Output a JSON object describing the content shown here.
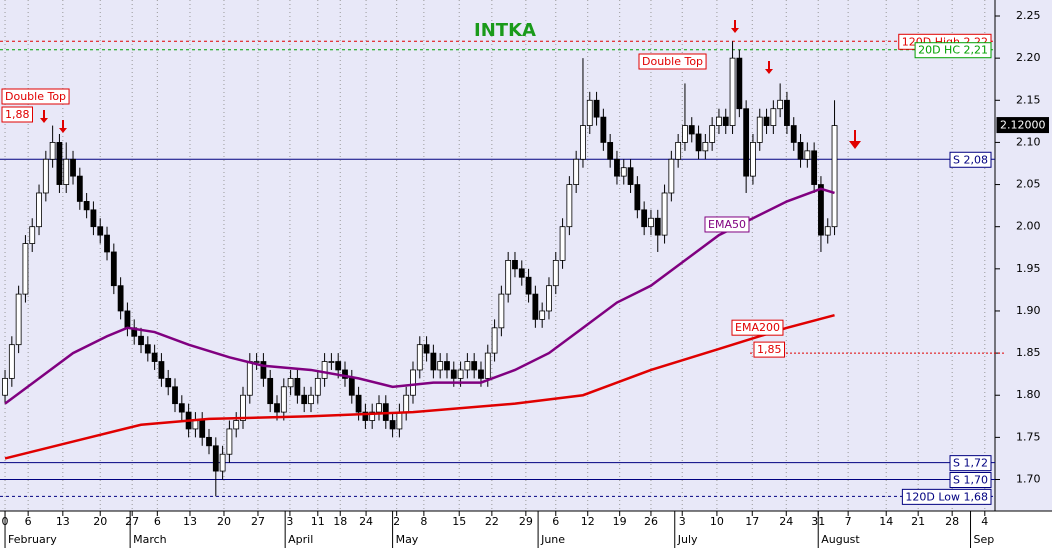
{
  "chart_data": {
    "type": "candlestick",
    "title": "INTKA",
    "open": [
      1.8,
      1.82,
      1.86,
      1.92,
      1.98,
      2.0,
      2.04,
      2.08,
      2.1,
      2.05,
      2.08,
      2.06,
      2.03,
      2.02,
      2.0,
      1.99,
      1.97,
      1.93,
      1.9,
      1.88,
      1.87,
      1.86,
      1.85,
      1.84,
      1.82,
      1.81,
      1.79,
      1.78,
      1.76,
      1.77,
      1.75,
      1.74,
      1.71,
      1.73,
      1.76,
      1.77,
      1.8,
      1.84,
      1.84,
      1.82,
      1.79,
      1.78,
      1.81,
      1.82,
      1.8,
      1.79,
      1.8,
      1.82,
      1.84,
      1.84,
      1.83,
      1.82,
      1.8,
      1.78,
      1.77,
      1.78,
      1.79,
      1.77,
      1.76,
      1.78,
      1.8,
      1.83,
      1.86,
      1.85,
      1.83,
      1.84,
      1.83,
      1.82,
      1.83,
      1.84,
      1.83,
      1.82,
      1.85,
      1.88,
      1.92,
      1.96,
      1.95,
      1.94,
      1.92,
      1.89,
      1.9,
      1.93,
      1.96,
      2.0,
      2.05,
      2.08,
      2.12,
      2.15,
      2.13,
      2.1,
      2.08,
      2.06,
      2.07,
      2.05,
      2.02,
      2.0,
      2.01,
      1.99,
      2.04,
      2.08,
      2.1,
      2.12,
      2.11,
      2.09,
      2.1,
      2.12,
      2.13,
      2.12,
      2.2,
      2.14,
      2.06,
      2.1,
      2.13,
      2.12,
      2.14,
      2.15,
      2.12,
      2.1,
      2.08,
      2.09,
      2.05,
      1.99,
      2.0
    ],
    "high": [
      1.83,
      1.87,
      1.93,
      1.99,
      2.01,
      2.05,
      2.09,
      2.12,
      2.11,
      2.1,
      2.09,
      2.07,
      2.04,
      2.03,
      2.01,
      2.0,
      1.98,
      1.94,
      1.91,
      1.89,
      1.88,
      1.87,
      1.86,
      1.85,
      1.83,
      1.82,
      1.8,
      1.79,
      1.78,
      1.78,
      1.76,
      1.75,
      1.74,
      1.77,
      1.78,
      1.81,
      1.85,
      1.85,
      1.85,
      1.83,
      1.8,
      1.82,
      1.83,
      1.83,
      1.81,
      1.81,
      1.83,
      1.85,
      1.85,
      1.85,
      1.84,
      1.83,
      1.81,
      1.79,
      1.79,
      1.8,
      1.8,
      1.78,
      1.79,
      1.81,
      1.84,
      1.87,
      1.87,
      1.86,
      1.85,
      1.85,
      1.84,
      1.84,
      1.85,
      1.85,
      1.84,
      1.86,
      1.89,
      1.93,
      1.97,
      1.97,
      1.96,
      1.95,
      1.93,
      1.91,
      1.94,
      1.97,
      2.01,
      2.06,
      2.09,
      2.2,
      2.16,
      2.16,
      2.14,
      2.11,
      2.09,
      2.08,
      2.08,
      2.06,
      2.03,
      2.02,
      2.02,
      2.05,
      2.09,
      2.11,
      2.17,
      2.13,
      2.12,
      2.11,
      2.13,
      2.14,
      2.14,
      2.22,
      2.21,
      2.15,
      2.11,
      2.14,
      2.14,
      2.15,
      2.17,
      2.16,
      2.13,
      2.11,
      2.1,
      2.1,
      2.06,
      2.01,
      2.15
    ],
    "low": [
      1.79,
      1.81,
      1.85,
      1.91,
      1.97,
      1.99,
      2.03,
      2.07,
      2.04,
      2.04,
      2.05,
      2.02,
      2.01,
      1.99,
      1.98,
      1.96,
      1.92,
      1.89,
      1.87,
      1.86,
      1.85,
      1.84,
      1.83,
      1.81,
      1.8,
      1.78,
      1.77,
      1.75,
      1.75,
      1.74,
      1.73,
      1.68,
      1.7,
      1.72,
      1.75,
      1.76,
      1.79,
      1.83,
      1.81,
      1.78,
      1.77,
      1.77,
      1.8,
      1.79,
      1.78,
      1.78,
      1.79,
      1.81,
      1.83,
      1.82,
      1.81,
      1.79,
      1.77,
      1.76,
      1.76,
      1.77,
      1.76,
      1.75,
      1.75,
      1.77,
      1.79,
      1.82,
      1.84,
      1.82,
      1.82,
      1.82,
      1.81,
      1.81,
      1.82,
      1.82,
      1.81,
      1.81,
      1.84,
      1.87,
      1.91,
      1.94,
      1.93,
      1.91,
      1.88,
      1.88,
      1.89,
      1.92,
      1.95,
      1.99,
      2.04,
      2.07,
      2.11,
      2.12,
      2.09,
      2.07,
      2.05,
      2.05,
      2.04,
      2.01,
      1.99,
      1.99,
      1.97,
      1.98,
      2.03,
      2.07,
      2.09,
      2.1,
      2.08,
      2.08,
      2.09,
      2.11,
      2.11,
      2.11,
      2.13,
      2.04,
      2.05,
      2.09,
      2.11,
      2.11,
      2.13,
      2.11,
      2.09,
      2.07,
      2.07,
      2.04,
      1.97,
      1.98,
      1.99
    ],
    "close": [
      1.82,
      1.86,
      1.92,
      1.98,
      2.0,
      2.04,
      2.08,
      2.1,
      2.05,
      2.08,
      2.06,
      2.03,
      2.02,
      2.0,
      1.99,
      1.97,
      1.93,
      1.9,
      1.88,
      1.87,
      1.86,
      1.85,
      1.84,
      1.82,
      1.81,
      1.79,
      1.78,
      1.76,
      1.77,
      1.75,
      1.74,
      1.71,
      1.73,
      1.76,
      1.77,
      1.8,
      1.84,
      1.84,
      1.82,
      1.79,
      1.78,
      1.81,
      1.82,
      1.8,
      1.79,
      1.8,
      1.82,
      1.84,
      1.84,
      1.83,
      1.82,
      1.8,
      1.78,
      1.77,
      1.78,
      1.79,
      1.77,
      1.76,
      1.78,
      1.8,
      1.83,
      1.86,
      1.85,
      1.83,
      1.84,
      1.83,
      1.82,
      1.83,
      1.84,
      1.83,
      1.82,
      1.85,
      1.88,
      1.92,
      1.96,
      1.95,
      1.94,
      1.92,
      1.89,
      1.9,
      1.93,
      1.96,
      2.0,
      2.05,
      2.08,
      2.12,
      2.15,
      2.13,
      2.1,
      2.08,
      2.06,
      2.07,
      2.05,
      2.02,
      2.0,
      2.01,
      1.99,
      2.04,
      2.08,
      2.1,
      2.12,
      2.11,
      2.09,
      2.1,
      2.12,
      2.13,
      2.12,
      2.2,
      2.14,
      2.06,
      2.1,
      2.13,
      2.12,
      2.14,
      2.15,
      2.12,
      2.1,
      2.08,
      2.09,
      2.05,
      1.99,
      2.0,
      2.12
    ],
    "overlays": [
      {
        "name": "EMA50",
        "color": "#800080",
        "x": [
          0,
          5,
          10,
          15,
          18,
          22,
          27,
          33,
          38,
          45,
          52,
          57,
          63,
          70,
          75,
          80,
          85,
          90,
          95,
          100,
          105,
          110,
          115,
          120,
          122
        ],
        "values": [
          1.79,
          1.82,
          1.85,
          1.87,
          1.88,
          1.875,
          1.86,
          1.845,
          1.835,
          1.83,
          1.82,
          1.81,
          1.815,
          1.815,
          1.83,
          1.85,
          1.88,
          1.91,
          1.93,
          1.96,
          1.99,
          2.01,
          2.03,
          2.045,
          2.04
        ]
      },
      {
        "name": "EMA200",
        "color": "#e00000",
        "x": [
          0,
          10,
          20,
          30,
          45,
          60,
          75,
          85,
          95,
          105,
          115,
          122
        ],
        "values": [
          1.725,
          1.745,
          1.765,
          1.772,
          1.775,
          1.78,
          1.79,
          1.8,
          1.83,
          1.855,
          1.88,
          1.895
        ]
      }
    ],
    "levels": [
      {
        "label": "120D High 2,22",
        "value": 2.22,
        "color": "#e00000",
        "style": "dashed"
      },
      {
        "label": "20D HC 2,21",
        "value": 2.21,
        "color": "#00a000",
        "style": "dashed"
      },
      {
        "label": "S 2,08",
        "value": 2.08,
        "color": "#000080",
        "style": "solid"
      },
      {
        "label": "S 1,72",
        "value": 1.72,
        "color": "#000080",
        "style": "solid"
      },
      {
        "label": "S 1,70",
        "value": 1.7,
        "color": "#000080",
        "style": "solid"
      },
      {
        "label": "120D Low 1,68",
        "value": 1.68,
        "color": "#000080",
        "style": "dashed"
      }
    ],
    "price_labels": [
      {
        "label": "1,88",
        "value": 1.88
      },
      {
        "label": "1,85",
        "value": 1.85
      }
    ],
    "last_price": {
      "label": "2.12000",
      "value": 2.12
    },
    "annotations": [
      "Double Top",
      "Double Top"
    ],
    "ylim": [
      1.665,
      2.269
    ],
    "yticks": [
      {
        "value": 1.7,
        "label": "1.70"
      },
      1.75,
      {
        "value": 1.8,
        "label": "1.80"
      },
      1.85,
      {
        "value": 1.9,
        "label": "1.90"
      },
      1.95,
      {
        "value": 2.0,
        "label": "2.00"
      },
      2.05,
      {
        "value": 2.1,
        "label": "2.10"
      },
      2.15,
      {
        "value": 2.2,
        "label": "2.20"
      },
      2.25
    ],
    "xlim": [
      -0.74,
      145.6
    ],
    "xticks": [
      {
        "value": 0,
        "label": "0"
      },
      {
        "value": 3.4,
        "label": "6"
      },
      {
        "value": 8.5,
        "label": "13"
      },
      {
        "value": 14,
        "label": "20"
      },
      {
        "value": 18.7,
        "label": "27"
      },
      {
        "value": 22.4,
        "label": "6"
      },
      {
        "value": 27.2,
        "label": "13"
      },
      {
        "value": 32.2,
        "label": "20"
      },
      {
        "value": 37.2,
        "label": "27"
      },
      {
        "value": 41.9,
        "label": "3"
      },
      {
        "value": 46,
        "label": "11"
      },
      {
        "value": 49.3,
        "label": "18"
      },
      {
        "value": 53.1,
        "label": "24"
      },
      {
        "value": 57.6,
        "label": "2"
      },
      {
        "value": 61.6,
        "label": "8"
      },
      {
        "value": 66.8,
        "label": "15"
      },
      {
        "value": 71.6,
        "label": "22"
      },
      {
        "value": 76.6,
        "label": "29"
      },
      {
        "value": 81,
        "label": "6"
      },
      {
        "value": 85.7,
        "label": "12"
      },
      {
        "value": 90.4,
        "label": "19"
      },
      {
        "value": 95,
        "label": "26"
      },
      {
        "value": 99.6,
        "label": "3"
      },
      {
        "value": 104.7,
        "label": "10"
      },
      {
        "value": 109.9,
        "label": "17"
      },
      {
        "value": 114.9,
        "label": "24"
      },
      {
        "value": 119.6,
        "label": "31"
      },
      {
        "value": 124,
        "label": "7"
      },
      {
        "value": 129.6,
        "label": "14"
      },
      {
        "value": 134.3,
        "label": "21"
      },
      {
        "value": 139.3,
        "label": "28"
      },
      {
        "value": 144.1,
        "label": "4"
      }
    ],
    "months": [
      {
        "value": 0,
        "label": "February"
      },
      {
        "value": 18.4,
        "label": "March"
      },
      {
        "value": 41.2,
        "label": "April"
      },
      {
        "value": 57,
        "label": "May"
      },
      {
        "value": 78.4,
        "label": "June"
      },
      {
        "value": 98.5,
        "label": "July"
      },
      {
        "value": 119.6,
        "label": "August"
      },
      {
        "value": 142,
        "label": "Sep"
      }
    ],
    "grid": true
  }
}
